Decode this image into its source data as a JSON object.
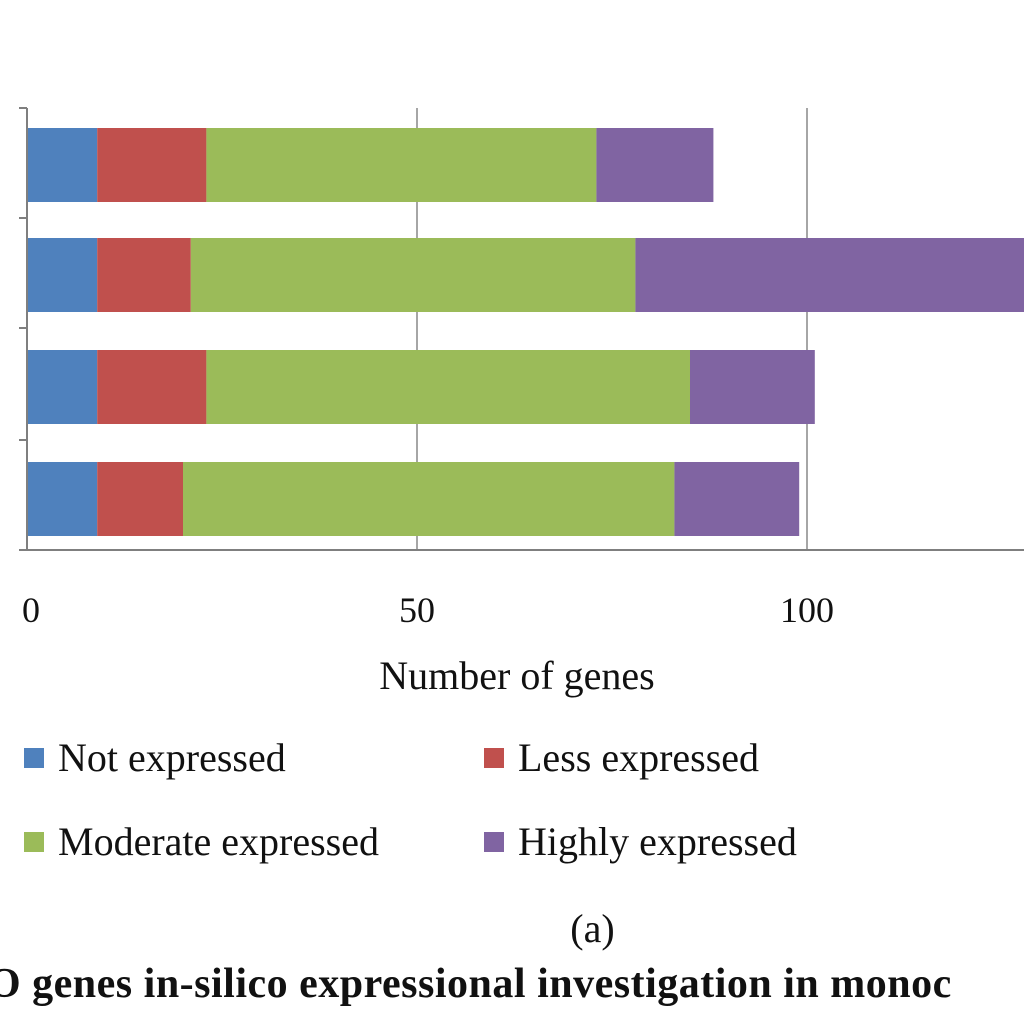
{
  "colors": {
    "not_expressed": "#4f81bd",
    "less_expressed": "#c0504d",
    "moderate_expressed": "#9bbb59",
    "highly_expressed": "#8064a2",
    "grid": "#a6a6a6",
    "axis": "#7f7f7f"
  },
  "chart_data": {
    "type": "bar",
    "orientation": "horizontal",
    "stacked": true,
    "categories": [
      "",
      "",
      "",
      ""
    ],
    "series": [
      {
        "name": "Not expressed",
        "values": [
          9,
          9,
          9,
          9
        ]
      },
      {
        "name": "Less expressed",
        "values": [
          14,
          12,
          14,
          11
        ]
      },
      {
        "name": "Moderate expressed",
        "values": [
          50,
          57,
          62,
          63
        ]
      },
      {
        "name": "Highly expressed",
        "values": [
          15,
          50,
          16,
          16
        ]
      }
    ],
    "xlabel": "Number of genes",
    "ylabel": "",
    "xlim": [
      0,
      128
    ],
    "xticks": [
      0,
      50,
      100
    ],
    "xtick_labels": [
      "0",
      "50",
      "100"
    ],
    "grid": "vertical",
    "legend_position": "bottom",
    "legend": [
      "Not expressed",
      "Less expressed",
      "Moderate expressed",
      "Highly expressed"
    ],
    "sub_label": "(a)",
    "caption": "O genes in-silico expressional investigation in monoc"
  }
}
